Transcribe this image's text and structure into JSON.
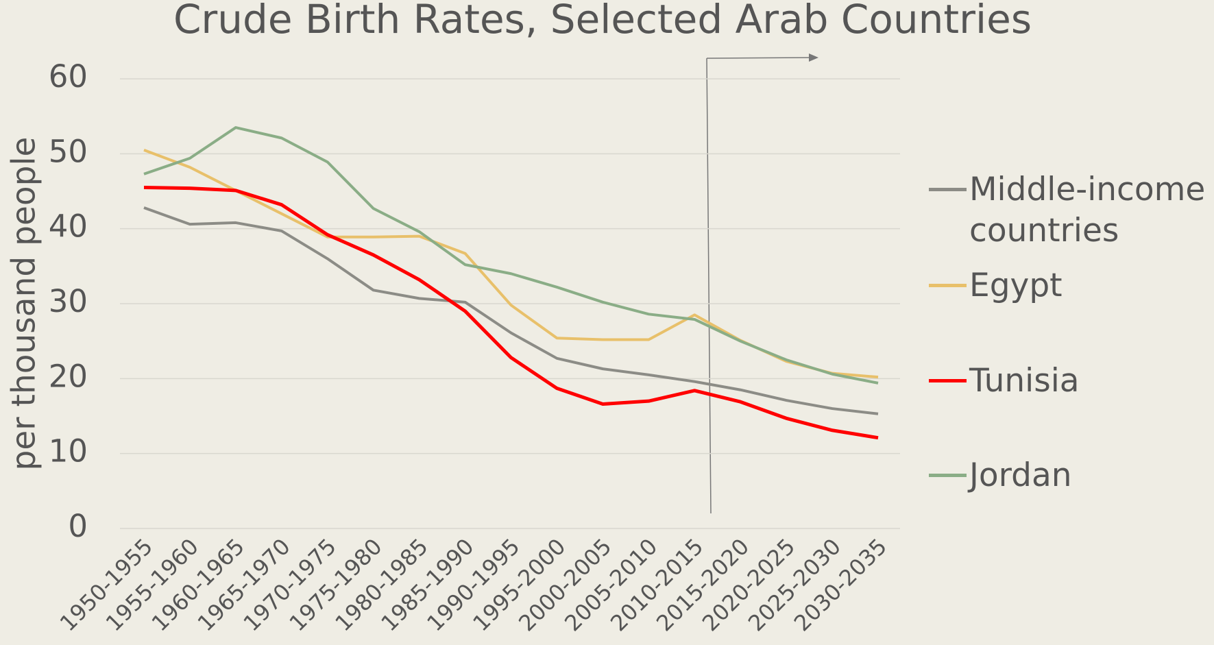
{
  "chart_data": {
    "type": "line",
    "title": "Crude Birth Rates, Selected Arab Countries",
    "ylabel": "per thousand people",
    "categories": [
      "1950-1955",
      "1955-1960",
      "1960-1965",
      "1965-1970",
      "1970-1975",
      "1975-1980",
      "1980-1985",
      "1985-1990",
      "1990-1995",
      "1995-2000",
      "2000-2005",
      "2005-2010",
      "2010-2015",
      "2015-2020",
      "2020-2025",
      "2025-2030",
      "2030-2035"
    ],
    "series": [
      {
        "name": "Middle-income countries",
        "color": "#8c8c86",
        "values": [
          42.8,
          40.6,
          40.8,
          39.7,
          36.0,
          31.8,
          30.7,
          30.2,
          26.1,
          22.7,
          21.3,
          20.5,
          19.6,
          18.5,
          17.1,
          16.0,
          15.3
        ]
      },
      {
        "name": "Egypt",
        "color": "#e8c06a",
        "values": [
          50.5,
          48.2,
          45.1,
          42.0,
          38.9,
          38.9,
          39.0,
          36.7,
          29.8,
          25.4,
          25.2,
          25.2,
          28.5,
          25.1,
          22.3,
          20.7,
          20.2
        ]
      },
      {
        "name": "Tunisia",
        "color": "#ff0000",
        "values": [
          45.5,
          45.4,
          45.1,
          43.2,
          39.2,
          36.5,
          33.2,
          29.0,
          22.8,
          18.7,
          16.6,
          17.0,
          18.4,
          16.9,
          14.7,
          13.1,
          12.1
        ]
      },
      {
        "name": "Jordan",
        "color": "#8aad86",
        "values": [
          47.3,
          49.4,
          53.5,
          52.1,
          48.9,
          42.7,
          39.6,
          35.2,
          34.0,
          32.2,
          30.2,
          28.6,
          27.9,
          25.0,
          22.5,
          20.6,
          19.4
        ]
      }
    ],
    "ylim": [
      0,
      60
    ],
    "yticks": [
      0,
      10,
      20,
      30,
      40,
      50,
      60
    ],
    "grid": true,
    "legend": "right"
  }
}
